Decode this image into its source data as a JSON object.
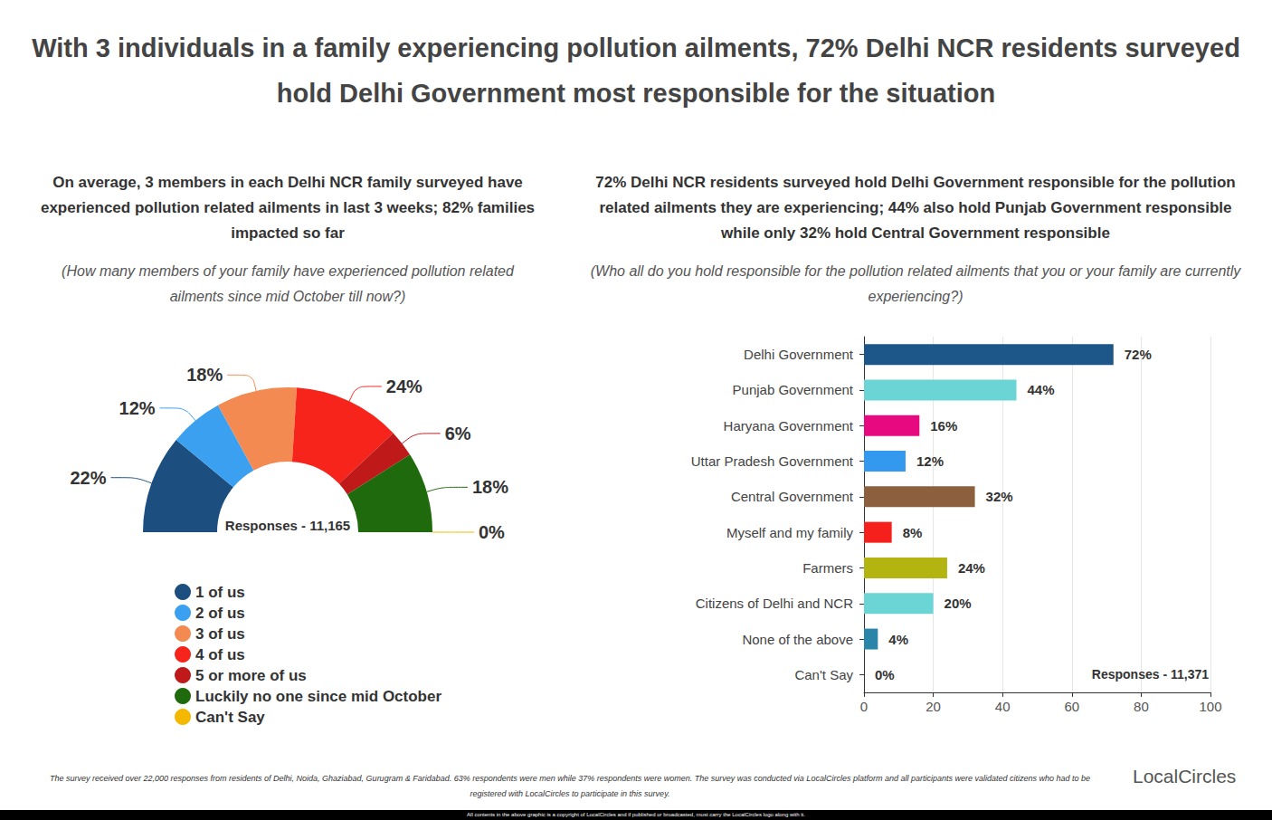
{
  "title": "With 3 individuals in a family experiencing pollution ailments, 72% Delhi NCR residents surveyed hold Delhi Government most responsible for the situation",
  "footnote": "The survey received over 22,000 responses from residents of Delhi, Noida, Ghaziabad, Gurugram & Faridabad. 63% respondents were men while 37% respondents were women. The survey was conducted via LocalCircles platform and all participants were validated citizens who had to be registered with LocalCircles to participate in this survey.",
  "copyright": "All contents in the above graphic is a copyright of LocalCircles and if published or broadcasted, must carry the LocalCircles logo along with it.",
  "logo": "LocalCircles",
  "chart_data": [
    {
      "type": "pie",
      "title": "On average, 3 members in each Delhi NCR family surveyed have experienced pollution related ailments in last 3 weeks; 82% families impacted so far",
      "subtitle": "(How many members of your family have experienced pollution related ailments since mid October till now?)",
      "annotation": "Responses - 11,165",
      "categories": [
        "1 of us",
        "2 of us",
        "3 of us",
        "4 of us",
        "5 or more of us",
        "Luckily no one since mid October",
        "Can't Say"
      ],
      "values": [
        22,
        12,
        18,
        24,
        6,
        18,
        0
      ],
      "value_labels": [
        "22%",
        "12%",
        "18%",
        "24%",
        "6%",
        "18%",
        "0%"
      ],
      "colors": [
        "#1c4f80",
        "#3ba0f0",
        "#f28a52",
        "#f7241c",
        "#c0191a",
        "#1e6a0c",
        "#f5b800"
      ],
      "data_labels": true,
      "legend": "bottom-left"
    },
    {
      "type": "bar",
      "title": "72% Delhi NCR residents surveyed hold Delhi Government responsible for the pollution related ailments they are experiencing; 44% also hold Punjab Government responsible while only 32% hold Central Government responsible",
      "subtitle": "(Who all do you hold responsible for the pollution related ailments that you or your family are currently experiencing?)",
      "annotation": "Responses - 11,371",
      "orientation": "horizontal",
      "categories": [
        "Delhi Government",
        "Punjab Government",
        "Haryana Government",
        "Uttar Pradesh Government",
        "Central Government",
        "Myself and my family",
        "Farmers",
        "Citizens of Delhi and NCR",
        "None of the above",
        "Can't Say"
      ],
      "values": [
        72,
        44,
        16,
        12,
        32,
        8,
        24,
        20,
        4,
        0
      ],
      "value_labels": [
        "72%",
        "44%",
        "16%",
        "12%",
        "32%",
        "8%",
        "24%",
        "20%",
        "4%",
        "0%"
      ],
      "colors": [
        "#1d5688",
        "#6bd5d5",
        "#e6097f",
        "#3399ee",
        "#8c5f3e",
        "#f5201c",
        "#b3b40f",
        "#6bd5d5",
        "#2a85a8",
        "#f0a030"
      ],
      "xlim": [
        0,
        100
      ],
      "xticks": [
        0,
        20,
        40,
        60,
        80,
        100
      ],
      "grid": true,
      "data_labels": true
    }
  ]
}
